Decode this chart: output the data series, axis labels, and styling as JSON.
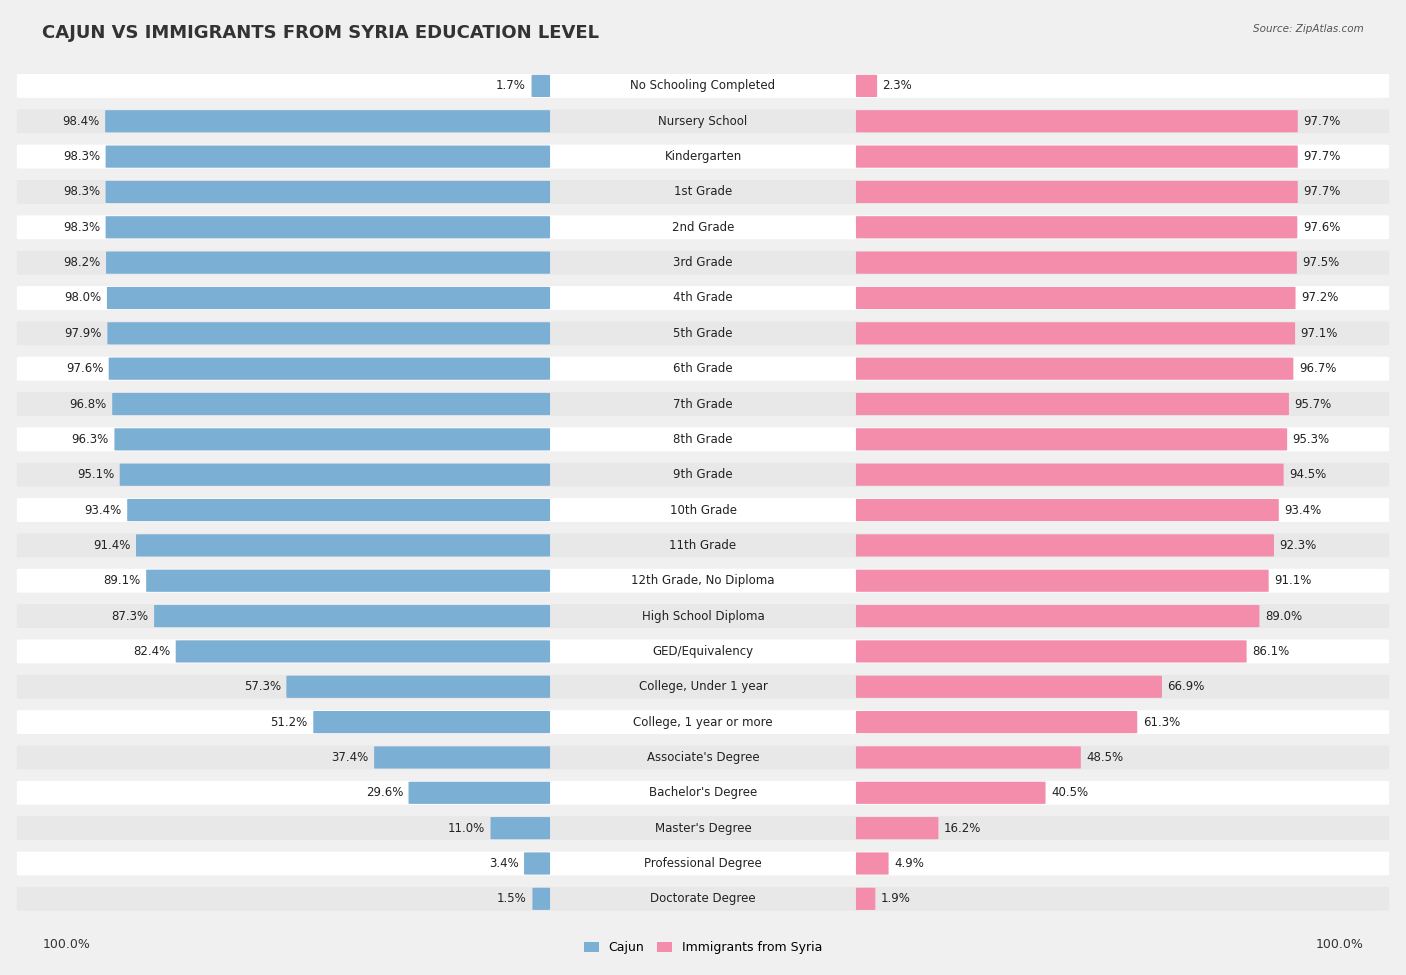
{
  "title": "CAJUN VS IMMIGRANTS FROM SYRIA EDUCATION LEVEL",
  "source": "Source: ZipAtlas.com",
  "categories": [
    "No Schooling Completed",
    "Nursery School",
    "Kindergarten",
    "1st Grade",
    "2nd Grade",
    "3rd Grade",
    "4th Grade",
    "5th Grade",
    "6th Grade",
    "7th Grade",
    "8th Grade",
    "9th Grade",
    "10th Grade",
    "11th Grade",
    "12th Grade, No Diploma",
    "High School Diploma",
    "GED/Equivalency",
    "College, Under 1 year",
    "College, 1 year or more",
    "Associate's Degree",
    "Bachelor's Degree",
    "Master's Degree",
    "Professional Degree",
    "Doctorate Degree"
  ],
  "cajun": [
    1.7,
    98.4,
    98.3,
    98.3,
    98.3,
    98.2,
    98.0,
    97.9,
    97.6,
    96.8,
    96.3,
    95.1,
    93.4,
    91.4,
    89.1,
    87.3,
    82.4,
    57.3,
    51.2,
    37.4,
    29.6,
    11.0,
    3.4,
    1.5
  ],
  "syria": [
    2.3,
    97.7,
    97.7,
    97.7,
    97.6,
    97.5,
    97.2,
    97.1,
    96.7,
    95.7,
    95.3,
    94.5,
    93.4,
    92.3,
    91.1,
    89.0,
    86.1,
    66.9,
    61.3,
    48.5,
    40.5,
    16.2,
    4.9,
    1.9
  ],
  "cajun_color": "#7bafd4",
  "syria_color": "#f48cac",
  "bg_color": "#f0f0f0",
  "bar_bg_color": "#ffffff",
  "row_alt_color": "#e8e8e8",
  "title_fontsize": 13,
  "label_fontsize": 8.5,
  "value_fontsize": 8.5,
  "legend_labels": [
    "Cajun",
    "Immigrants from Syria"
  ],
  "x_left_label": "100.0%",
  "x_right_label": "100.0%"
}
